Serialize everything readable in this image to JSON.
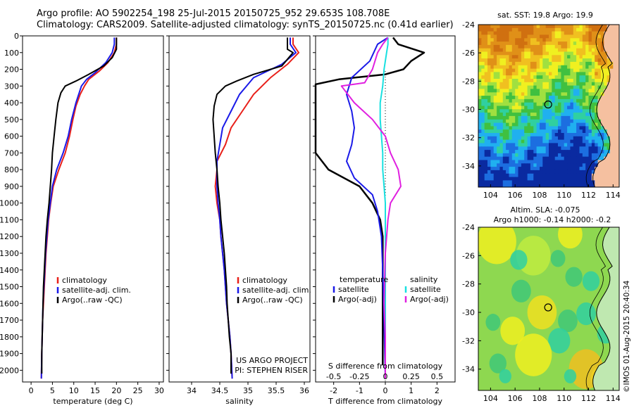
{
  "header": {
    "line1": "Argo profile: AO 5902254_198 25-Jul-2015 20150725_952 29.653S 108.708E",
    "line2": "Climatology: CARS2009. Satellite-adjusted climatology: synTS_20150725.nc (0.41d earlier)"
  },
  "credit": "©IMOS 01-Aug-2015 20:40:34",
  "colors": {
    "clim": "#e8201a",
    "sat": "#1a1ae8",
    "argo": "#000000",
    "sat_diff": "#18e0e0",
    "argo_diff": "#e020e0"
  },
  "chart_data": [
    {
      "type": "line",
      "xlabel": "temperature (deg C)",
      "xlim": [
        -2,
        31
      ],
      "xticks": [
        0,
        5,
        10,
        15,
        20,
        25,
        30
      ],
      "ylim": [
        2070,
        0
      ],
      "yticks": [
        0,
        100,
        200,
        300,
        400,
        500,
        600,
        700,
        800,
        900,
        1000,
        1100,
        1200,
        1300,
        1400,
        1500,
        1600,
        1700,
        1800,
        1900,
        2000
      ],
      "legend": [
        "climatology",
        "satellite-adj. clim.",
        "Argo(..raw -QC)"
      ],
      "series": [
        {
          "key": "clim",
          "points": [
            [
              20,
              10
            ],
            [
              20,
              50
            ],
            [
              19.5,
              100
            ],
            [
              18,
              160
            ],
            [
              16,
              210
            ],
            [
              13.5,
              260
            ],
            [
              12.5,
              300
            ],
            [
              11.5,
              350
            ],
            [
              10.5,
              420
            ],
            [
              9.8,
              500
            ],
            [
              9,
              600
            ],
            [
              8,
              700
            ],
            [
              6.5,
              800
            ],
            [
              5.2,
              900
            ],
            [
              4.6,
              1000
            ],
            [
              4.1,
              1100
            ],
            [
              3.8,
              1200
            ],
            [
              3.5,
              1300
            ],
            [
              3.3,
              1400
            ],
            [
              3.1,
              1500
            ],
            [
              2.9,
              1600
            ],
            [
              2.7,
              1700
            ],
            [
              2.6,
              1800
            ],
            [
              2.5,
              1900
            ],
            [
              2.4,
              2050
            ]
          ]
        },
        {
          "key": "sat",
          "points": [
            [
              19.5,
              10
            ],
            [
              19.5,
              50
            ],
            [
              19,
              100
            ],
            [
              17.5,
              160
            ],
            [
              15,
              220
            ],
            [
              13,
              260
            ],
            [
              11.8,
              300
            ],
            [
              10.5,
              400
            ],
            [
              9.5,
              500
            ],
            [
              8.7,
              600
            ],
            [
              7.5,
              700
            ],
            [
              6,
              800
            ],
            [
              5,
              900
            ],
            [
              4.5,
              1000
            ],
            [
              4,
              1100
            ],
            [
              3.7,
              1200
            ],
            [
              3.4,
              1300
            ],
            [
              3.2,
              1400
            ],
            [
              3,
              1500
            ],
            [
              2.8,
              1600
            ],
            [
              2.7,
              1700
            ],
            [
              2.6,
              1800
            ],
            [
              2.5,
              1900
            ],
            [
              2.4,
              2050
            ]
          ]
        },
        {
          "key": "argo",
          "points": [
            [
              20,
              10
            ],
            [
              20,
              80
            ],
            [
              19,
              130
            ],
            [
              17,
              180
            ],
            [
              13.5,
              230
            ],
            [
              10.5,
              270
            ],
            [
              8,
              300
            ],
            [
              7,
              340
            ],
            [
              6.3,
              400
            ],
            [
              5.8,
              500
            ],
            [
              5.4,
              600
            ],
            [
              5,
              700
            ],
            [
              4.8,
              800
            ],
            [
              4.5,
              900
            ],
            [
              4.2,
              1000
            ],
            [
              3.8,
              1100
            ],
            [
              3.5,
              1200
            ],
            [
              3.3,
              1300
            ],
            [
              3.1,
              1400
            ],
            [
              2.9,
              1500
            ],
            [
              2.8,
              1600
            ],
            [
              2.7,
              1700
            ],
            [
              2.6,
              1800
            ],
            [
              2.5,
              1900
            ],
            [
              2.5,
              2020
            ]
          ]
        }
      ]
    },
    {
      "type": "line",
      "xlabel": "salinity",
      "xlim": [
        33.6,
        36.1
      ],
      "xticks": [
        34,
        34.5,
        35,
        35.5,
        36
      ],
      "ylim": [
        2070,
        0
      ],
      "legend": [
        "climatology",
        "satellite-adj. clim.",
        "Argo(..raw -QC)"
      ],
      "annotation": [
        "US ARGO PROJECT",
        "PI: STEPHEN RISER"
      ],
      "series": [
        {
          "key": "clim",
          "points": [
            [
              35.8,
              10
            ],
            [
              35.8,
              50
            ],
            [
              35.9,
              100
            ],
            [
              35.7,
              170
            ],
            [
              35.4,
              250
            ],
            [
              35.1,
              350
            ],
            [
              34.9,
              450
            ],
            [
              34.7,
              550
            ],
            [
              34.6,
              650
            ],
            [
              34.45,
              750
            ],
            [
              34.45,
              800
            ],
            [
              34.42,
              900
            ],
            [
              34.45,
              1000
            ],
            [
              34.5,
              1100
            ],
            [
              34.52,
              1200
            ],
            [
              34.55,
              1300
            ],
            [
              34.58,
              1400
            ],
            [
              34.6,
              1500
            ],
            [
              34.62,
              1600
            ],
            [
              34.65,
              1700
            ],
            [
              34.68,
              1800
            ],
            [
              34.7,
              1900
            ],
            [
              34.72,
              2050
            ]
          ]
        },
        {
          "key": "sat",
          "points": [
            [
              35.75,
              10
            ],
            [
              35.75,
              50
            ],
            [
              35.85,
              100
            ],
            [
              35.6,
              170
            ],
            [
              35.1,
              250
            ],
            [
              34.85,
              350
            ],
            [
              34.7,
              450
            ],
            [
              34.55,
              550
            ],
            [
              34.5,
              650
            ],
            [
              34.45,
              750
            ],
            [
              34.45,
              800
            ],
            [
              34.45,
              900
            ],
            [
              34.47,
              1000
            ],
            [
              34.5,
              1100
            ],
            [
              34.52,
              1200
            ],
            [
              34.55,
              1300
            ],
            [
              34.58,
              1400
            ],
            [
              34.6,
              1500
            ],
            [
              34.62,
              1600
            ],
            [
              34.65,
              1700
            ],
            [
              34.68,
              1800
            ],
            [
              34.7,
              1900
            ],
            [
              34.72,
              2050
            ]
          ]
        },
        {
          "key": "argo",
          "points": [
            [
              35.7,
              10
            ],
            [
              35.7,
              80
            ],
            [
              35.8,
              100
            ],
            [
              35.6,
              180
            ],
            [
              35.1,
              230
            ],
            [
              34.8,
              270
            ],
            [
              34.6,
              300
            ],
            [
              34.45,
              350
            ],
            [
              34.4,
              420
            ],
            [
              34.38,
              500
            ],
            [
              34.4,
              600
            ],
            [
              34.42,
              700
            ],
            [
              34.45,
              800
            ],
            [
              34.47,
              900
            ],
            [
              34.5,
              1000
            ],
            [
              34.52,
              1100
            ],
            [
              34.55,
              1200
            ],
            [
              34.58,
              1300
            ],
            [
              34.6,
              1400
            ],
            [
              34.62,
              1500
            ],
            [
              34.63,
              1600
            ],
            [
              34.65,
              1700
            ],
            [
              34.67,
              1800
            ],
            [
              34.7,
              1900
            ],
            [
              34.7,
              2020
            ]
          ]
        }
      ]
    },
    {
      "type": "line",
      "xlabel": "T difference from climatology",
      "xlim": [
        -2.7,
        2.7
      ],
      "xticks": [
        -2,
        -1,
        0,
        1,
        2
      ],
      "top_axis_label": "S difference from climatology",
      "top_ticks": [
        "-0.5",
        "-0.25",
        "0",
        "0.25",
        "0.5"
      ],
      "top_tick_values": [
        -0.5,
        -0.25,
        0,
        0.25,
        0.5
      ],
      "ylim": [
        2070,
        0
      ],
      "legend_left_title": "temperature",
      "legend_right_title": "salinity",
      "legend": [
        "satellite",
        "Argo(-adj)",
        "satellite",
        "Argo(-adj)"
      ],
      "series": [
        {
          "key": "argo",
          "points": [
            [
              0.3,
              10
            ],
            [
              0.5,
              50
            ],
            [
              1.5,
              100
            ],
            [
              1.0,
              150
            ],
            [
              0.7,
              200
            ],
            [
              0,
              230
            ],
            [
              -1.8,
              260
            ],
            [
              -2.7,
              290
            ],
            [
              -2.7,
              700
            ],
            [
              -2.2,
              800
            ],
            [
              -1.0,
              900
            ],
            [
              -0.5,
              1000
            ],
            [
              -0.2,
              1100
            ],
            [
              -0.1,
              1200
            ],
            [
              -0.1,
              1400
            ],
            [
              -0.1,
              1600
            ],
            [
              -0.1,
              1800
            ],
            [
              -0.1,
              1900
            ],
            [
              -0.1,
              1970
            ]
          ]
        },
        {
          "key": "sat",
          "points": [
            [
              0.1,
              10
            ],
            [
              -0.3,
              50
            ],
            [
              -0.6,
              150
            ],
            [
              -1.3,
              250
            ],
            [
              -1.5,
              350
            ],
            [
              -1.3,
              450
            ],
            [
              -1.2,
              550
            ],
            [
              -1.3,
              650
            ],
            [
              -1.5,
              750
            ],
            [
              -1.2,
              850
            ],
            [
              -0.5,
              950
            ],
            [
              -0.3,
              1050
            ],
            [
              -0.15,
              1200
            ],
            [
              -0.1,
              1400
            ],
            [
              -0.05,
              1700
            ],
            [
              0,
              2050
            ]
          ]
        },
        {
          "key": "sat_diff",
          "points": [
            [
              0.1,
              10
            ],
            [
              0.1,
              50
            ],
            [
              0.05,
              100
            ],
            [
              -0.05,
              200
            ],
            [
              -0.1,
              300
            ],
            [
              -0.2,
              400
            ],
            [
              -0.2,
              500
            ],
            [
              -0.15,
              600
            ],
            [
              -0.1,
              700
            ],
            [
              -0.1,
              800
            ],
            [
              -0.05,
              900
            ],
            [
              0,
              1000
            ],
            [
              0,
              1200
            ],
            [
              0,
              1500
            ],
            [
              0,
              1800
            ],
            [
              0,
              2050
            ]
          ]
        },
        {
          "key": "argo_diff",
          "points": [
            [
              0.1,
              10
            ],
            [
              -0.1,
              50
            ],
            [
              -0.3,
              100
            ],
            [
              -0.5,
              200
            ],
            [
              -0.8,
              280
            ],
            [
              -1.7,
              300
            ],
            [
              -1.2,
              400
            ],
            [
              -0.5,
              500
            ],
            [
              0,
              600
            ],
            [
              0.2,
              700
            ],
            [
              0.5,
              800
            ],
            [
              0.6,
              900
            ],
            [
              0.2,
              1000
            ],
            [
              0.1,
              1100
            ],
            [
              0,
              1300
            ],
            [
              -0.05,
              1600
            ],
            [
              0,
              1800
            ],
            [
              0,
              2050
            ]
          ]
        }
      ]
    },
    {
      "type": "heatmap",
      "title": "sat. SST: 19.8 Argo: 19.9",
      "xticks": [
        "104",
        "106",
        "108",
        "110",
        "112",
        "114"
      ],
      "xtick_values": [
        104,
        106,
        108,
        110,
        112,
        114
      ],
      "yticks": [
        "-24",
        "-26",
        "-28",
        "-30",
        "-32",
        "-34"
      ],
      "ytick_values": [
        -24,
        -26,
        -28,
        -30,
        -32,
        -34
      ],
      "xlim": [
        103,
        114.5
      ],
      "ylim": [
        -35.5,
        -24
      ],
      "marker": [
        108.7,
        -29.65
      ]
    },
    {
      "type": "heatmap",
      "title_lines": [
        "Altim. SLA: -0.075",
        "Argo h1000: -0.14 h2000: -0.2"
      ],
      "xticks": [
        "104",
        "106",
        "108",
        "110",
        "112",
        "114"
      ],
      "xtick_values": [
        104,
        106,
        108,
        110,
        112,
        114
      ],
      "yticks": [
        "-24",
        "-26",
        "-28",
        "-30",
        "-32",
        "-34"
      ],
      "ytick_values": [
        -24,
        -26,
        -28,
        -30,
        -32,
        -34
      ],
      "xlim": [
        103,
        114.5
      ],
      "ylim": [
        -35.5,
        -24
      ],
      "marker": [
        108.7,
        -29.65
      ]
    }
  ]
}
